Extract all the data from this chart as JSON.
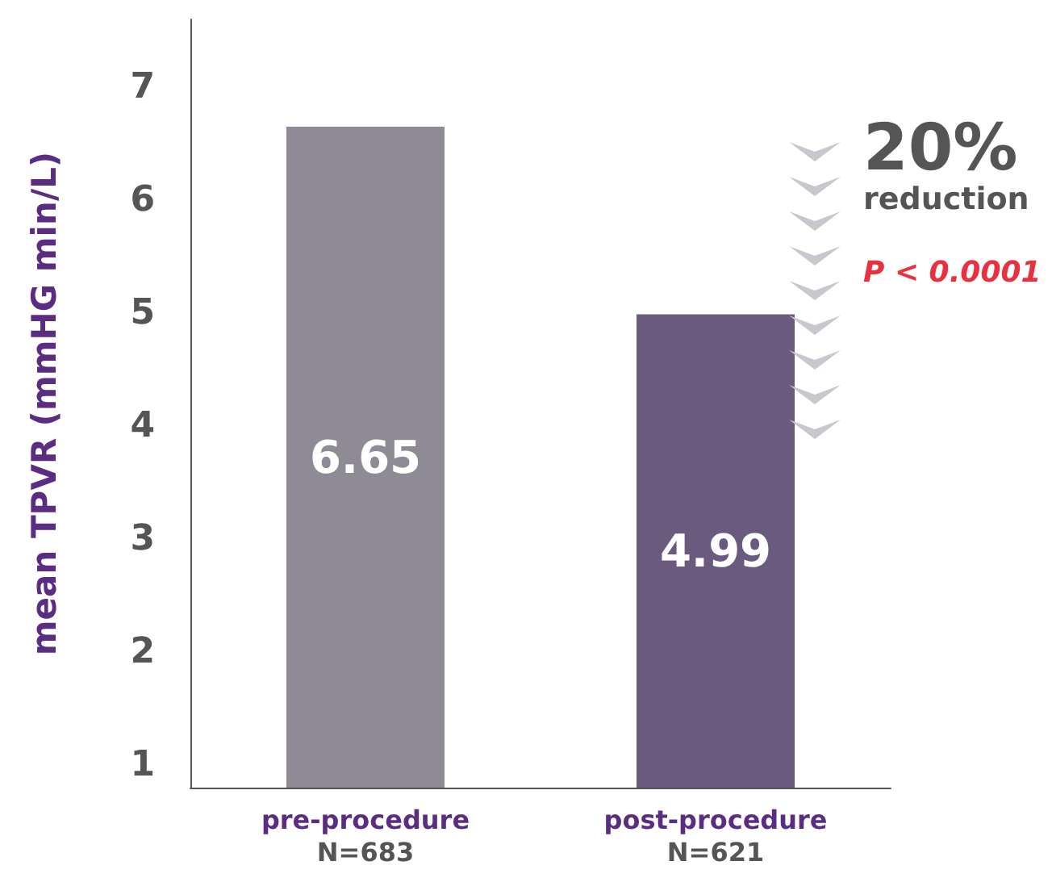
{
  "chart_data": {
    "type": "bar",
    "categories": [
      "pre-procedure\nN=683",
      "post-procedure\nN=621"
    ],
    "values": [
      6.65,
      4.99
    ],
    "colors": [
      "#8e8a96",
      "#6a5a7e"
    ],
    "ylabel": "mean TPVR (mmHG min/L)",
    "ylim": [
      0.8,
      7.6
    ],
    "yticks": [
      1,
      2,
      3,
      4,
      5,
      6,
      7
    ],
    "data_labels": true,
    "grid": false,
    "annotations": [
      "20%",
      "reduction",
      "P < 0.0001"
    ]
  }
}
